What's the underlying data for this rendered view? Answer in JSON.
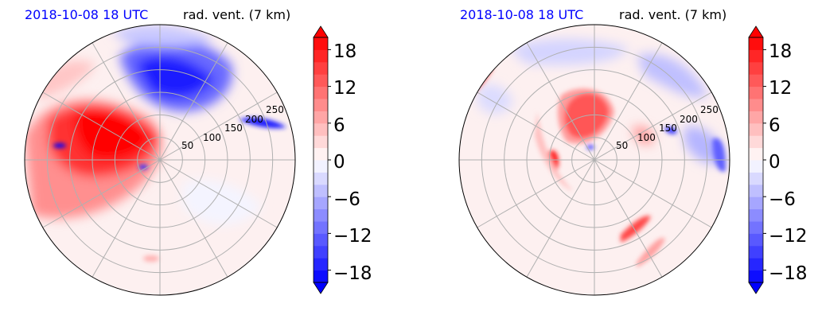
{
  "palette": {
    "neg_strong": "#0000ff",
    "neutral": "#ffffff",
    "pos_strong": "#ff0000",
    "grid": "#b0b0b0",
    "time_label": "#0000ff"
  },
  "colorbar": {
    "ticks": [
      "18",
      "12",
      "6",
      "0",
      "−6",
      "−12",
      "−18"
    ],
    "levels": [
      -20,
      -18,
      -16,
      -14,
      -12,
      -10,
      -8,
      -6,
      -4,
      -2,
      0,
      2,
      4,
      6,
      8,
      10,
      12,
      14,
      16,
      18,
      20
    ],
    "extend": "both"
  },
  "chart_data": [
    {
      "type": "heatmap",
      "projection": "polar",
      "panel": "left",
      "title_left": "2018-10-08 18 UTC",
      "title_right": "rad. vent. (7 km)",
      "radial_ticks": [
        "50",
        "100",
        "150",
        "200",
        "250"
      ],
      "radial_values": [
        50,
        100,
        150,
        200,
        250
      ],
      "rlim": [
        0,
        300
      ],
      "angular_grid_deg": 30,
      "colorbar_range": [
        -20,
        20
      ],
      "features": [
        {
          "name": "positive region west-southwest",
          "angle_deg": 190,
          "r_range": [
            0,
            300
          ],
          "value": 16
        },
        {
          "name": "strong positive core west",
          "angle_deg": 170,
          "r_range": [
            0,
            150
          ],
          "value": 20
        },
        {
          "name": "negative region north",
          "angle_deg": 80,
          "r_range": [
            60,
            300
          ],
          "value": -16
        },
        {
          "name": "negative strip east",
          "angle_deg": 25,
          "r_range": [
            200,
            300
          ],
          "value": -14
        }
      ]
    },
    {
      "type": "heatmap",
      "projection": "polar",
      "panel": "right",
      "title_left": "2018-10-08 18 UTC",
      "title_right": "rad. vent. (7 km)",
      "radial_ticks": [
        "50",
        "100",
        "150",
        "200",
        "250"
      ],
      "radial_values": [
        50,
        100,
        150,
        200,
        250
      ],
      "rlim": [
        0,
        300
      ],
      "angular_grid_deg": 30,
      "colorbar_range": [
        -20,
        20
      ],
      "features": [
        {
          "name": "positive core north-northwest",
          "angle_deg": 110,
          "r_range": [
            20,
            80
          ],
          "value": 18
        },
        {
          "name": "positive streak southeast",
          "angle_deg": 300,
          "r_range": [
            150,
            260
          ],
          "value": 12
        },
        {
          "name": "negative patches north and east",
          "angle_deg": 60,
          "r_range": [
            120,
            300
          ],
          "value": -10
        },
        {
          "name": "positive spot west",
          "angle_deg": 180,
          "r_range": [
            90,
            130
          ],
          "value": 16
        }
      ]
    }
  ]
}
